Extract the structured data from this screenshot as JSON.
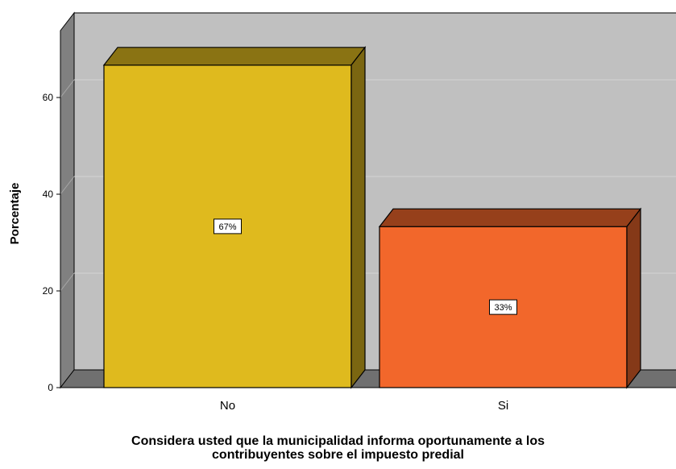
{
  "chart_data": {
    "type": "bar",
    "categories": [
      "No",
      "Si"
    ],
    "values": [
      66.7,
      33.3
    ],
    "data_labels": [
      "67%",
      "33%"
    ],
    "colors": [
      "#DFBA1E",
      "#F2672B"
    ],
    "ylabel": "Porcentaje",
    "xlabel_lines": [
      "Considera usted que la municipalidad informa oportunamente a los",
      "contribuyentes sobre el impuesto predial"
    ],
    "yticks": [
      0,
      20,
      40,
      60
    ],
    "ylim": [
      0,
      75
    ],
    "grid": true,
    "legend": "none",
    "style": "3d"
  }
}
